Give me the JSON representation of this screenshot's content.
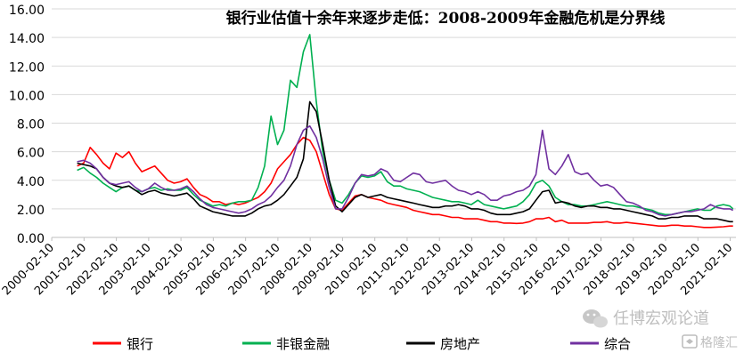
{
  "chart_data": {
    "type": "line",
    "title": "银行业估值十余年来逐步走低：2008-2009年金融危机是分界线",
    "xlabel": "",
    "ylabel": "",
    "ylim": [
      0,
      16
    ],
    "yticks": [
      "0.00",
      "2.00",
      "4.00",
      "6.00",
      "8.00",
      "10.00",
      "12.00",
      "14.00",
      "16.00"
    ],
    "x_range": [
      2000.11,
      2021.29
    ],
    "x_tick_labels": [
      "2000-02-10",
      "2001-02-10",
      "2002-02-10",
      "2003-02-10",
      "2004-02-10",
      "2005-02-10",
      "2006-02-10",
      "2007-02-10",
      "2008-02-10",
      "2009-02-10",
      "2010-02-10",
      "2011-02-10",
      "2012-02-10",
      "2013-02-10",
      "2014-02-10",
      "2015-02-10",
      "2016-02-10",
      "2017-02-10",
      "2018-02-10",
      "2019-02-10",
      "2020-02-10",
      "2021-02-10"
    ],
    "legend_position": "bottom",
    "grid": "horizontal",
    "x_values": [
      2000.9,
      2001.1,
      2001.3,
      2001.5,
      2001.7,
      2001.9,
      2002.1,
      2002.3,
      2002.5,
      2002.7,
      2002.9,
      2003.1,
      2003.3,
      2003.5,
      2003.7,
      2003.9,
      2004.1,
      2004.3,
      2004.5,
      2004.7,
      2004.9,
      2005.1,
      2005.3,
      2005.5,
      2005.7,
      2005.9,
      2006.1,
      2006.3,
      2006.5,
      2006.7,
      2006.9,
      2007.1,
      2007.3,
      2007.5,
      2007.7,
      2007.9,
      2008.1,
      2008.3,
      2008.5,
      2008.7,
      2008.9,
      2009.1,
      2009.3,
      2009.5,
      2009.7,
      2009.9,
      2010.1,
      2010.3,
      2010.5,
      2010.7,
      2010.9,
      2011.1,
      2011.3,
      2011.5,
      2011.7,
      2011.9,
      2012.1,
      2012.3,
      2012.5,
      2012.7,
      2012.9,
      2013.1,
      2013.3,
      2013.5,
      2013.7,
      2013.9,
      2014.1,
      2014.3,
      2014.5,
      2014.7,
      2014.9,
      2015.1,
      2015.3,
      2015.5,
      2015.7,
      2015.9,
      2016.1,
      2016.3,
      2016.5,
      2016.7,
      2016.9,
      2017.1,
      2017.3,
      2017.5,
      2017.7,
      2017.9,
      2018.1,
      2018.3,
      2018.5,
      2018.7,
      2018.9,
      2019.1,
      2019.3,
      2019.5,
      2019.7,
      2019.9,
      2020.1,
      2020.3,
      2020.5,
      2020.7,
      2020.9,
      2021.1,
      2021.2
    ],
    "series": [
      {
        "name": "银行",
        "color": "#ff0000",
        "values": [
          5.0,
          5.2,
          6.3,
          5.8,
          5.2,
          4.8,
          5.9,
          5.6,
          6.0,
          5.2,
          4.6,
          4.8,
          5.0,
          4.5,
          4.0,
          3.8,
          3.9,
          4.1,
          3.5,
          3.0,
          2.8,
          2.5,
          2.5,
          2.3,
          2.4,
          2.3,
          2.4,
          2.6,
          2.8,
          3.2,
          3.8,
          4.8,
          5.3,
          5.8,
          6.5,
          7.0,
          6.8,
          6.0,
          4.5,
          3.0,
          2.0,
          1.9,
          2.4,
          2.9,
          3.0,
          2.8,
          2.7,
          2.6,
          2.4,
          2.3,
          2.2,
          2.1,
          1.9,
          1.8,
          1.7,
          1.6,
          1.6,
          1.5,
          1.4,
          1.4,
          1.3,
          1.3,
          1.3,
          1.2,
          1.1,
          1.1,
          1.0,
          1.0,
          0.98,
          1.0,
          1.1,
          1.3,
          1.3,
          1.4,
          1.1,
          1.2,
          1.0,
          1.0,
          1.0,
          1.0,
          1.05,
          1.05,
          1.1,
          1.0,
          1.0,
          1.05,
          1.0,
          0.95,
          0.9,
          0.85,
          0.8,
          0.8,
          0.85,
          0.85,
          0.8,
          0.8,
          0.75,
          0.7,
          0.7,
          0.72,
          0.75,
          0.8,
          0.8
        ]
      },
      {
        "name": "非银金融",
        "color": "#00b050",
        "values": [
          4.7,
          4.9,
          4.5,
          4.2,
          3.8,
          3.5,
          3.2,
          3.5,
          3.6,
          3.3,
          3.2,
          3.4,
          3.5,
          3.3,
          3.4,
          3.3,
          3.3,
          3.5,
          3.0,
          2.6,
          2.4,
          2.2,
          2.3,
          2.2,
          2.4,
          2.5,
          2.5,
          2.6,
          3.5,
          5.0,
          8.5,
          6.5,
          7.5,
          11.0,
          10.5,
          13.0,
          14.2,
          9.5,
          6.0,
          4.0,
          2.6,
          2.4,
          3.0,
          3.8,
          4.3,
          4.2,
          4.3,
          4.6,
          3.9,
          3.6,
          3.6,
          3.4,
          3.3,
          3.2,
          3.0,
          2.8,
          2.7,
          2.6,
          2.5,
          2.5,
          2.4,
          2.3,
          2.6,
          2.3,
          2.2,
          2.1,
          2.0,
          2.1,
          2.2,
          2.5,
          3.0,
          3.8,
          4.0,
          3.6,
          2.8,
          2.5,
          2.3,
          2.3,
          2.2,
          2.2,
          2.3,
          2.4,
          2.5,
          2.4,
          2.3,
          2.2,
          2.2,
          2.1,
          2.0,
          1.9,
          1.7,
          1.6,
          1.6,
          1.7,
          1.8,
          1.9,
          2.0,
          1.9,
          1.9,
          2.2,
          2.3,
          2.2,
          2.0
        ]
      },
      {
        "name": "房地产",
        "color": "#000000",
        "values": [
          5.2,
          5.1,
          5.0,
          4.8,
          4.2,
          3.8,
          3.6,
          3.5,
          3.6,
          3.3,
          3.0,
          3.2,
          3.3,
          3.1,
          3.0,
          2.9,
          3.0,
          3.1,
          2.7,
          2.2,
          2.0,
          1.8,
          1.7,
          1.6,
          1.5,
          1.5,
          1.5,
          1.7,
          2.0,
          2.2,
          2.3,
          2.6,
          3.0,
          3.6,
          4.2,
          5.5,
          9.5,
          8.8,
          6.5,
          4.0,
          2.2,
          1.8,
          2.3,
          2.8,
          3.0,
          2.8,
          2.9,
          3.0,
          2.8,
          2.7,
          2.6,
          2.5,
          2.4,
          2.3,
          2.2,
          2.1,
          2.1,
          2.2,
          2.2,
          2.3,
          2.2,
          2.0,
          2.0,
          1.9,
          1.7,
          1.6,
          1.6,
          1.6,
          1.7,
          1.8,
          2.0,
          2.6,
          3.2,
          3.3,
          2.4,
          2.5,
          2.4,
          2.2,
          2.1,
          2.2,
          2.2,
          2.1,
          2.1,
          2.0,
          2.0,
          1.9,
          1.8,
          1.7,
          1.6,
          1.5,
          1.3,
          1.3,
          1.4,
          1.4,
          1.5,
          1.5,
          1.5,
          1.3,
          1.3,
          1.3,
          1.2,
          1.1,
          1.1
        ]
      },
      {
        "name": "综合",
        "color": "#7030a0",
        "values": [
          5.3,
          5.4,
          5.2,
          4.8,
          4.2,
          3.8,
          3.7,
          3.8,
          3.9,
          3.5,
          3.2,
          3.4,
          3.8,
          3.5,
          3.3,
          3.3,
          3.4,
          3.6,
          3.2,
          2.7,
          2.3,
          2.1,
          2.0,
          1.9,
          1.8,
          1.7,
          1.8,
          2.0,
          2.3,
          2.5,
          2.9,
          3.5,
          4.0,
          5.0,
          6.5,
          7.5,
          7.8,
          7.0,
          5.5,
          3.5,
          2.0,
          2.0,
          2.8,
          3.8,
          4.4,
          4.3,
          4.4,
          4.8,
          4.6,
          4.0,
          3.9,
          4.2,
          4.5,
          4.4,
          3.9,
          3.8,
          3.9,
          4.0,
          3.6,
          3.3,
          3.2,
          3.0,
          3.2,
          3.0,
          2.6,
          2.6,
          2.9,
          3.0,
          3.2,
          3.3,
          3.6,
          4.4,
          7.5,
          4.8,
          4.4,
          5.0,
          5.8,
          4.6,
          4.4,
          4.5,
          4.0,
          3.6,
          3.7,
          3.5,
          3.0,
          2.5,
          2.4,
          2.2,
          1.9,
          1.8,
          1.6,
          1.5,
          1.6,
          1.7,
          1.8,
          1.8,
          1.9,
          2.0,
          2.3,
          2.1,
          2.0,
          2.0,
          1.9
        ]
      }
    ]
  },
  "watermarks": {
    "account": "任博宏观论道",
    "brand": "格隆汇"
  }
}
